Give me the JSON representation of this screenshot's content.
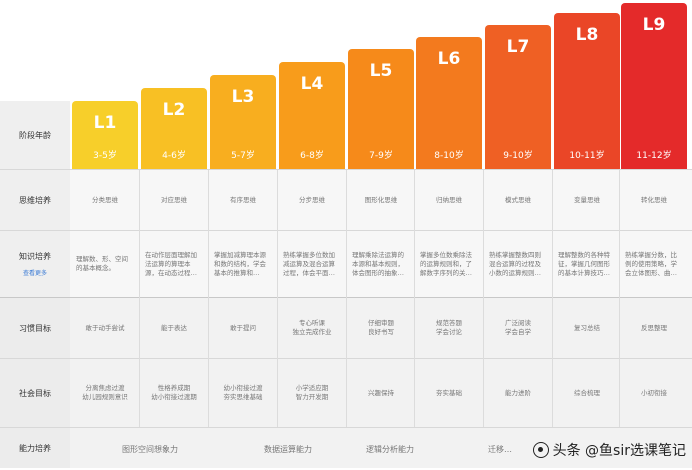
{
  "row_labels": {
    "age": "阶段年龄",
    "thinking": "思维培养",
    "knowledge": "知识培养",
    "knowledge_more": "查看更多",
    "habit": "习惯目标",
    "social": "社会目标",
    "ability": "能力培养"
  },
  "levels": [
    {
      "code": "L1",
      "age": "3-5岁",
      "color": "#f7cf2a"
    },
    {
      "code": "L2",
      "age": "4-6岁",
      "color": "#f8c024"
    },
    {
      "code": "L3",
      "age": "5-7岁",
      "color": "#f8ae1f"
    },
    {
      "code": "L4",
      "age": "6-8岁",
      "color": "#f89c1b"
    },
    {
      "code": "L5",
      "age": "7-9岁",
      "color": "#f68a1a"
    },
    {
      "code": "L6",
      "age": "8-10岁",
      "color": "#f37a1e"
    },
    {
      "code": "L7",
      "age": "9-10岁",
      "color": "#ef6024"
    },
    {
      "code": "L8",
      "age": "10-11岁",
      "color": "#ea4627"
    },
    {
      "code": "L9",
      "age": "11-12岁",
      "color": "#e42a2a"
    }
  ],
  "thinking": [
    "分类思维",
    "对应思维",
    "有序思维",
    "分步思维",
    "图形化思维",
    "归纳思维",
    "模式思维",
    "变量思维",
    "转化思维"
  ],
  "knowledge": [
    "理解数、形、空间的基本概念。",
    "在动作层面理解加法运算的算理本源，在动态过程…",
    "掌握加减算理本源和数的结构，学会基本的推算和…",
    "熟练掌握多位数加减运算及混合运算过程，体会平面…",
    "理解乘除法运算的本源和基本规则，体会图形的抽象…",
    "掌握多位数乘除法的运算规则和，了解数字序列的关…",
    "熟练掌握整数四则混合运算的过程及小数的运算规则…",
    "理解整数的各种特征，掌握几何图形的基本计算技巧…",
    "熟练掌握分数，比例的使用策略，学会立体图形、曲…"
  ],
  "habit": [
    [
      "敢于动手尝试"
    ],
    [
      "能于表达"
    ],
    [
      "敢于提问"
    ],
    [
      "专心听课",
      "独立完成作业"
    ],
    [
      "仔细审题",
      "良好书写"
    ],
    [
      "规范答题",
      "学会讨论"
    ],
    [
      "广泛阅读",
      "学会自学"
    ],
    [
      "复习总结"
    ],
    [
      "反思整理"
    ]
  ],
  "social": [
    [
      "分离焦虑过渡",
      "幼儿园规则意识"
    ],
    [
      "性格养成期",
      "幼小衔接过渡期"
    ],
    [
      "幼小衔接过渡",
      "夯实思维基础"
    ],
    [
      "小学适应期",
      "智力开发期"
    ],
    [
      "兴趣保持"
    ],
    [
      "夯实基础"
    ],
    [
      "能力进阶"
    ],
    [
      "综合梳理"
    ],
    [
      "小初衔接"
    ]
  ],
  "ability": [
    "图形空间想象力",
    "数据运算能力",
    "逻辑分析能力",
    "迁移…"
  ],
  "watermark": "头条 @鱼sir选课笔记"
}
